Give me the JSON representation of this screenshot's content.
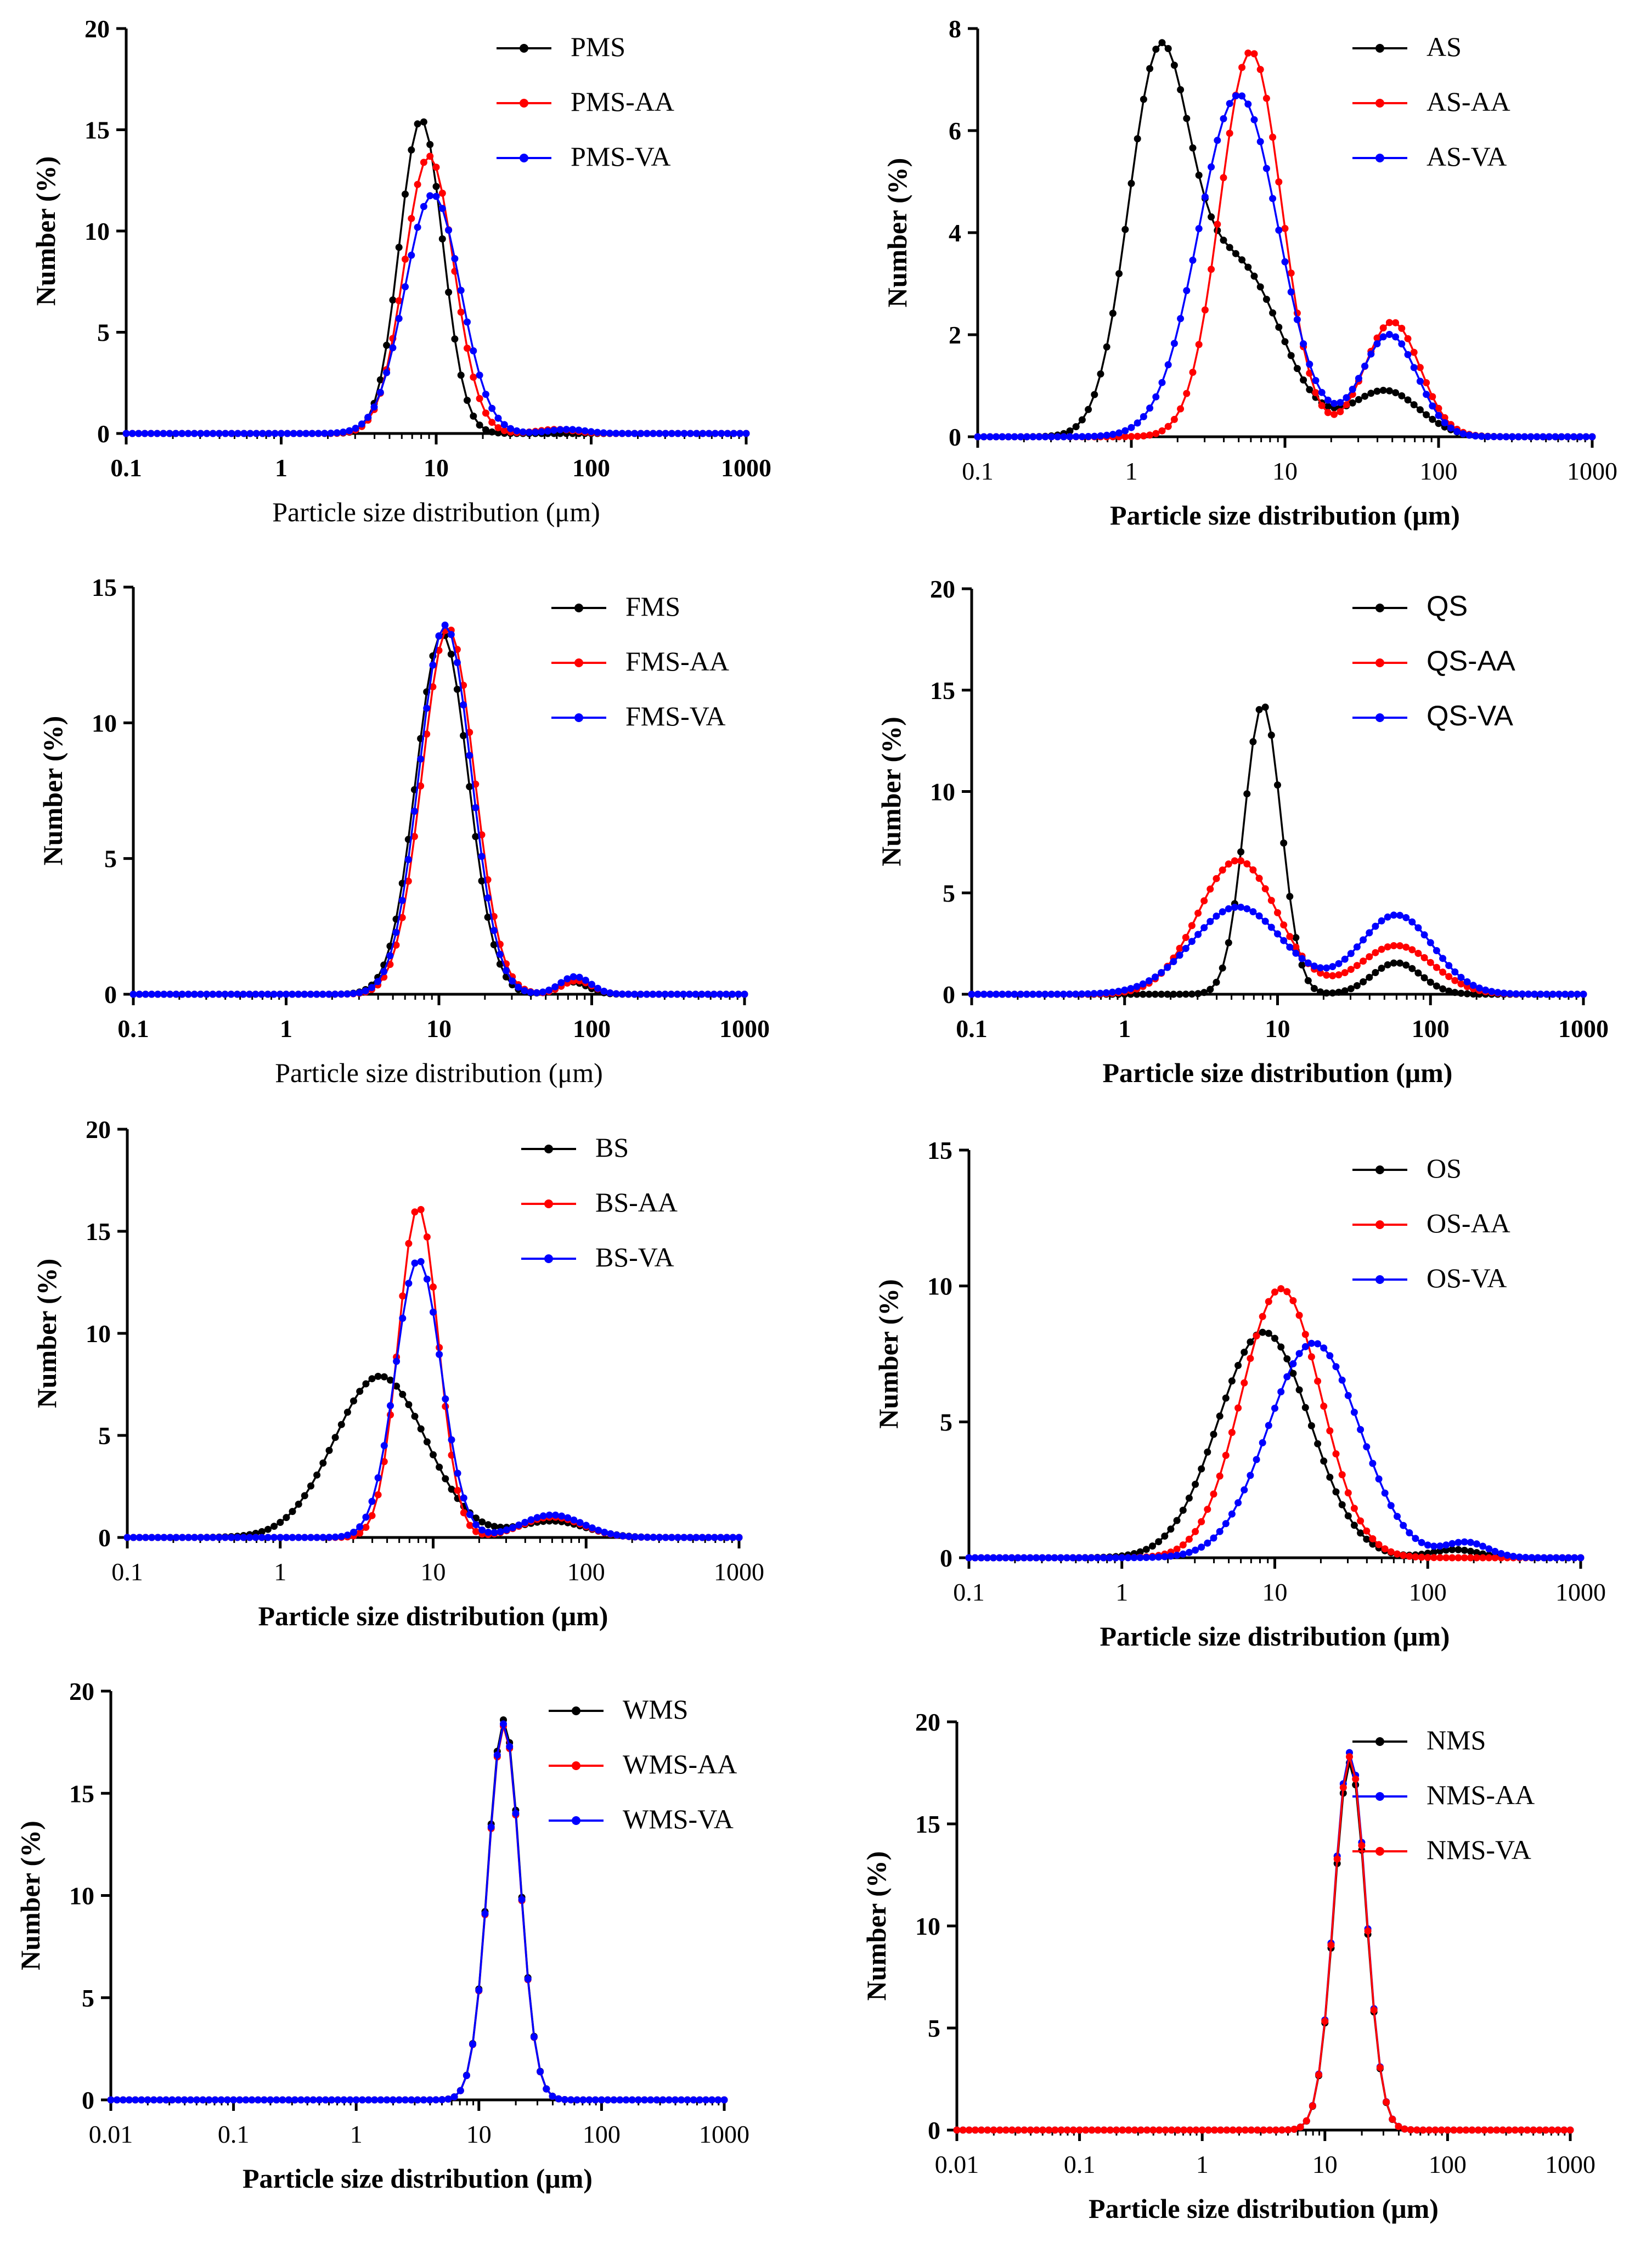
{
  "figure": {
    "colors": {
      "black": "#000000",
      "red": "#ff0000",
      "blue": "#0000ff"
    }
  },
  "chart_data": [
    {
      "type": "line",
      "id": "pms",
      "title": "",
      "xlabel": "Particle size distribution (μm)",
      "ylabel": "Number (%)",
      "xscale": "log",
      "xlim": [
        0.1,
        1000
      ],
      "xticks": [
        "0.1",
        "1",
        "10",
        "100",
        "1000"
      ],
      "ylim": [
        0,
        20
      ],
      "yticks": [
        "0",
        "5",
        "10",
        "15",
        "20"
      ],
      "grid": false,
      "legend_position": "top-right",
      "series": [
        {
          "name": "PMS",
          "color": "#000000",
          "peaks": [
            {
              "center": 8,
              "height": 15.5,
              "sigma": 0.14
            }
          ]
        },
        {
          "name": "PMS-AA",
          "color": "#ff0000",
          "peaks": [
            {
              "center": 9,
              "height": 13.7,
              "sigma": 0.16
            },
            {
              "center": 60,
              "height": 0.2,
              "sigma": 0.12
            }
          ]
        },
        {
          "name": "PMS-VA",
          "color": "#0000ff",
          "peaks": [
            {
              "center": 9.5,
              "height": 11.8,
              "sigma": 0.18
            },
            {
              "center": 70,
              "height": 0.2,
              "sigma": 0.12
            }
          ]
        }
      ]
    },
    {
      "type": "line",
      "id": "as",
      "title": "",
      "xlabel": "Particle size distribution (μm)",
      "ylabel": "Number (%)",
      "xscale": "log",
      "xlim": [
        0.1,
        1000
      ],
      "xticks": [
        "0.1",
        "1",
        "10",
        "100",
        "1000"
      ],
      "ylim": [
        0,
        8
      ],
      "yticks": [
        "0",
        "2",
        "4",
        "6",
        "8"
      ],
      "grid": false,
      "legend_position": "top-right",
      "series": [
        {
          "name": "AS",
          "color": "#000000",
          "peaks": [
            {
              "center": 1.5,
              "height": 7.1,
              "sigma": 0.2
            },
            {
              "center": 5,
              "height": 3.3,
              "sigma": 0.28
            },
            {
              "center": 45,
              "height": 0.9,
              "sigma": 0.22
            }
          ]
        },
        {
          "name": "AS-AA",
          "color": "#ff0000",
          "peaks": [
            {
              "center": 6,
              "height": 7.55,
              "sigma": 0.2
            },
            {
              "center": 50,
              "height": 2.25,
              "sigma": 0.18
            }
          ]
        },
        {
          "name": "AS-VA",
          "color": "#0000ff",
          "peaks": [
            {
              "center": 5,
              "height": 6.7,
              "sigma": 0.26
            },
            {
              "center": 48,
              "height": 2.0,
              "sigma": 0.18
            }
          ]
        }
      ]
    },
    {
      "type": "line",
      "id": "fms",
      "title": "",
      "xlabel": "Particle size distribution (μm)",
      "ylabel": "Number (%)",
      "xscale": "log",
      "xlim": [
        0.1,
        1000
      ],
      "xticks": [
        "0.1",
        "1",
        "10",
        "100",
        "1000"
      ],
      "ylim": [
        0,
        15
      ],
      "yticks": [
        "0",
        "5",
        "10",
        "15"
      ],
      "grid": false,
      "legend_position": "top-right",
      "series": [
        {
          "name": "FMS",
          "color": "#000000",
          "peaks": [
            {
              "center": 10.5,
              "height": 13.3,
              "sigma": 0.17
            },
            {
              "center": 75,
              "height": 0.45,
              "sigma": 0.1
            }
          ]
        },
        {
          "name": "FMS-AA",
          "color": "#ff0000",
          "peaks": [
            {
              "center": 11.5,
              "height": 13.5,
              "sigma": 0.17
            },
            {
              "center": 80,
              "height": 0.5,
              "sigma": 0.1
            }
          ]
        },
        {
          "name": "FMS-VA",
          "color": "#0000ff",
          "peaks": [
            {
              "center": 11,
              "height": 13.6,
              "sigma": 0.17
            },
            {
              "center": 78,
              "height": 0.65,
              "sigma": 0.1
            }
          ]
        }
      ]
    },
    {
      "type": "line",
      "id": "qs",
      "title": "",
      "xlabel": "Particle size distribution (μm)",
      "ylabel": "Number (%)",
      "xscale": "log",
      "xlim": [
        0.1,
        1000
      ],
      "xticks": [
        "0.1",
        "1",
        "10",
        "100",
        "1000"
      ],
      "ylim": [
        0,
        20
      ],
      "yticks": [
        "0",
        "5",
        "10",
        "15",
        "20"
      ],
      "grid": false,
      "legend_position": "top-right",
      "series": [
        {
          "name": "QS",
          "color": "#000000",
          "peaks": [
            {
              "center": 8,
              "height": 14.3,
              "sigma": 0.12
            },
            {
              "center": 60,
              "height": 1.55,
              "sigma": 0.16
            }
          ]
        },
        {
          "name": "QS-AA",
          "color": "#ff0000",
          "peaks": [
            {
              "center": 5.5,
              "height": 6.6,
              "sigma": 0.26
            },
            {
              "center": 60,
              "height": 2.4,
              "sigma": 0.24
            }
          ]
        },
        {
          "name": "QS-VA",
          "color": "#0000ff",
          "peaks": [
            {
              "center": 5.5,
              "height": 4.3,
              "sigma": 0.3
            },
            {
              "center": 60,
              "height": 3.9,
              "sigma": 0.24
            }
          ]
        }
      ]
    },
    {
      "type": "line",
      "id": "bs",
      "title": "",
      "xlabel": "Particle size distribution (μm)",
      "ylabel": "Number (%)",
      "xscale": "log",
      "xlim": [
        0.1,
        1000
      ],
      "xticks": [
        "0.1",
        "1",
        "10",
        "100",
        "1000"
      ],
      "ylim": [
        0,
        20
      ],
      "yticks": [
        "0",
        "5",
        "10",
        "15",
        "20"
      ],
      "grid": false,
      "legend_position": "top-right",
      "series": [
        {
          "name": "BS",
          "color": "#000000",
          "peaks": [
            {
              "center": 4.5,
              "height": 7.9,
              "sigma": 0.3
            },
            {
              "center": 60,
              "height": 0.8,
              "sigma": 0.22
            }
          ]
        },
        {
          "name": "BS-AA",
          "color": "#ff0000",
          "peaks": [
            {
              "center": 8,
              "height": 16.2,
              "sigma": 0.13
            },
            {
              "center": 60,
              "height": 1.0,
              "sigma": 0.2
            }
          ]
        },
        {
          "name": "BS-VA",
          "color": "#0000ff",
          "peaks": [
            {
              "center": 8,
              "height": 13.6,
              "sigma": 0.15
            },
            {
              "center": 60,
              "height": 1.1,
              "sigma": 0.2
            }
          ]
        }
      ]
    },
    {
      "type": "line",
      "id": "os",
      "title": "",
      "xlabel": "Particle size distribution (μm)",
      "ylabel": "Number (%)",
      "xscale": "log",
      "xlim": [
        0.1,
        1000
      ],
      "xticks": [
        "0.1",
        "1",
        "10",
        "100",
        "1000"
      ],
      "ylim": [
        0,
        15
      ],
      "yticks": [
        "0",
        "5",
        "10",
        "15"
      ],
      "grid": false,
      "legend_position": "top-right",
      "series": [
        {
          "name": "OS",
          "color": "#000000",
          "peaks": [
            {
              "center": 8.5,
              "height": 8.3,
              "sigma": 0.3
            },
            {
              "center": 150,
              "height": 0.3,
              "sigma": 0.15
            }
          ]
        },
        {
          "name": "OS-AA",
          "color": "#ff0000",
          "peaks": [
            {
              "center": 11,
              "height": 9.9,
              "sigma": 0.26
            }
          ]
        },
        {
          "name": "OS-VA",
          "color": "#0000ff",
          "peaks": [
            {
              "center": 18,
              "height": 7.9,
              "sigma": 0.3
            },
            {
              "center": 180,
              "height": 0.55,
              "sigma": 0.14
            }
          ]
        }
      ]
    },
    {
      "type": "line",
      "id": "wms",
      "title": "",
      "xlabel": "Particle size distribution (μm)",
      "ylabel": "Number (%)",
      "xscale": "log",
      "xlim": [
        0.01,
        1000
      ],
      "xticks": [
        "0.01",
        "0.1",
        "1",
        "10",
        "100",
        "1000"
      ],
      "ylim": [
        0,
        20
      ],
      "yticks": [
        "0",
        "5",
        "10",
        "15",
        "20"
      ],
      "grid": false,
      "legend_position": "top-right",
      "series": [
        {
          "name": "WMS",
          "color": "#000000",
          "peaks": [
            {
              "center": 16,
              "height": 18.6,
              "sigma": 0.13
            }
          ]
        },
        {
          "name": "WMS-AA",
          "color": "#ff0000",
          "peaks": [
            {
              "center": 16,
              "height": 18.3,
              "sigma": 0.13
            }
          ]
        },
        {
          "name": "WMS-VA",
          "color": "#0000ff",
          "peaks": [
            {
              "center": 16,
              "height": 18.4,
              "sigma": 0.13
            }
          ]
        }
      ]
    },
    {
      "type": "line",
      "id": "nms",
      "title": "",
      "xlabel": "Particle size distribution (μm)",
      "ylabel": "Number (%)",
      "xscale": "log",
      "xlim": [
        0.01,
        1000
      ],
      "xticks": [
        "0.01",
        "0.1",
        "1",
        "10",
        "100",
        "1000"
      ],
      "ylim": [
        0,
        20
      ],
      "yticks": [
        "0",
        "5",
        "10",
        "15",
        "20"
      ],
      "grid": false,
      "legend_position": "top-right",
      "series": [
        {
          "name": "NMS",
          "color": "#000000",
          "peaks": [
            {
              "center": 16,
              "height": 18.0,
              "sigma": 0.13
            }
          ]
        },
        {
          "name": "NMS-AA",
          "color": "#0000ff",
          "peaks": [
            {
              "center": 16,
              "height": 18.5,
              "sigma": 0.13
            }
          ]
        },
        {
          "name": "NMS-VA",
          "color": "#ff0000",
          "peaks": [
            {
              "center": 16,
              "height": 18.3,
              "sigma": 0.13
            }
          ]
        }
      ]
    }
  ]
}
